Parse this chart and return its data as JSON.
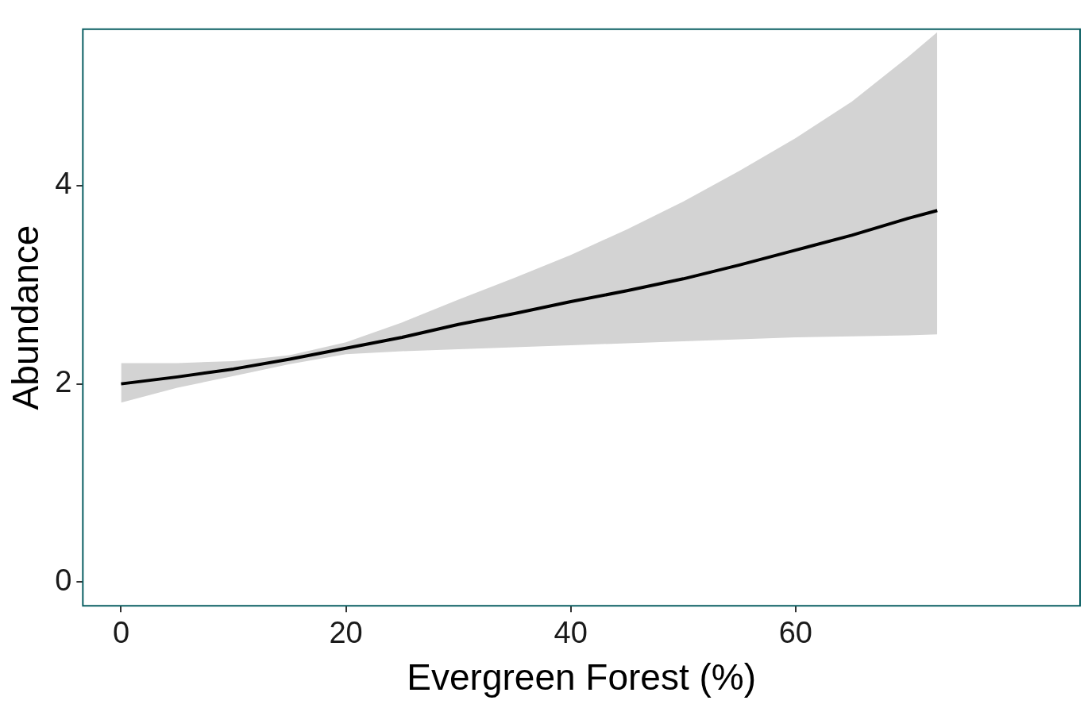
{
  "chart_data": {
    "type": "line",
    "xlabel": "Evergreen Forest (%)",
    "ylabel": "Abundance",
    "x": [
      0,
      5,
      10,
      15,
      20,
      25,
      30,
      35,
      40,
      45,
      50,
      55,
      60,
      65,
      70,
      72.6
    ],
    "series": [
      {
        "color": "#000000",
        "values": [
          2.0,
          2.07,
          2.15,
          2.25,
          2.36,
          2.47,
          2.6,
          2.71,
          2.83,
          2.94,
          3.06,
          3.2,
          3.35,
          3.5,
          3.67,
          3.75
        ],
        "lower": [
          1.81,
          1.96,
          2.08,
          2.2,
          2.3,
          2.33,
          2.35,
          2.37,
          2.39,
          2.41,
          2.43,
          2.45,
          2.47,
          2.48,
          2.49,
          2.5
        ],
        "upper": [
          2.21,
          2.21,
          2.23,
          2.29,
          2.42,
          2.62,
          2.85,
          3.07,
          3.3,
          3.56,
          3.84,
          4.15,
          4.48,
          4.85,
          5.3,
          5.55
        ]
      }
    ],
    "xlim": [
      -3.4,
      85.3
    ],
    "ylim": [
      -0.24,
      5.58
    ],
    "xticks": [
      0,
      20,
      40,
      60
    ],
    "yticks": [
      0,
      2,
      4
    ],
    "grid": false,
    "legend": false,
    "line_style": "solid",
    "marker": "none"
  }
}
